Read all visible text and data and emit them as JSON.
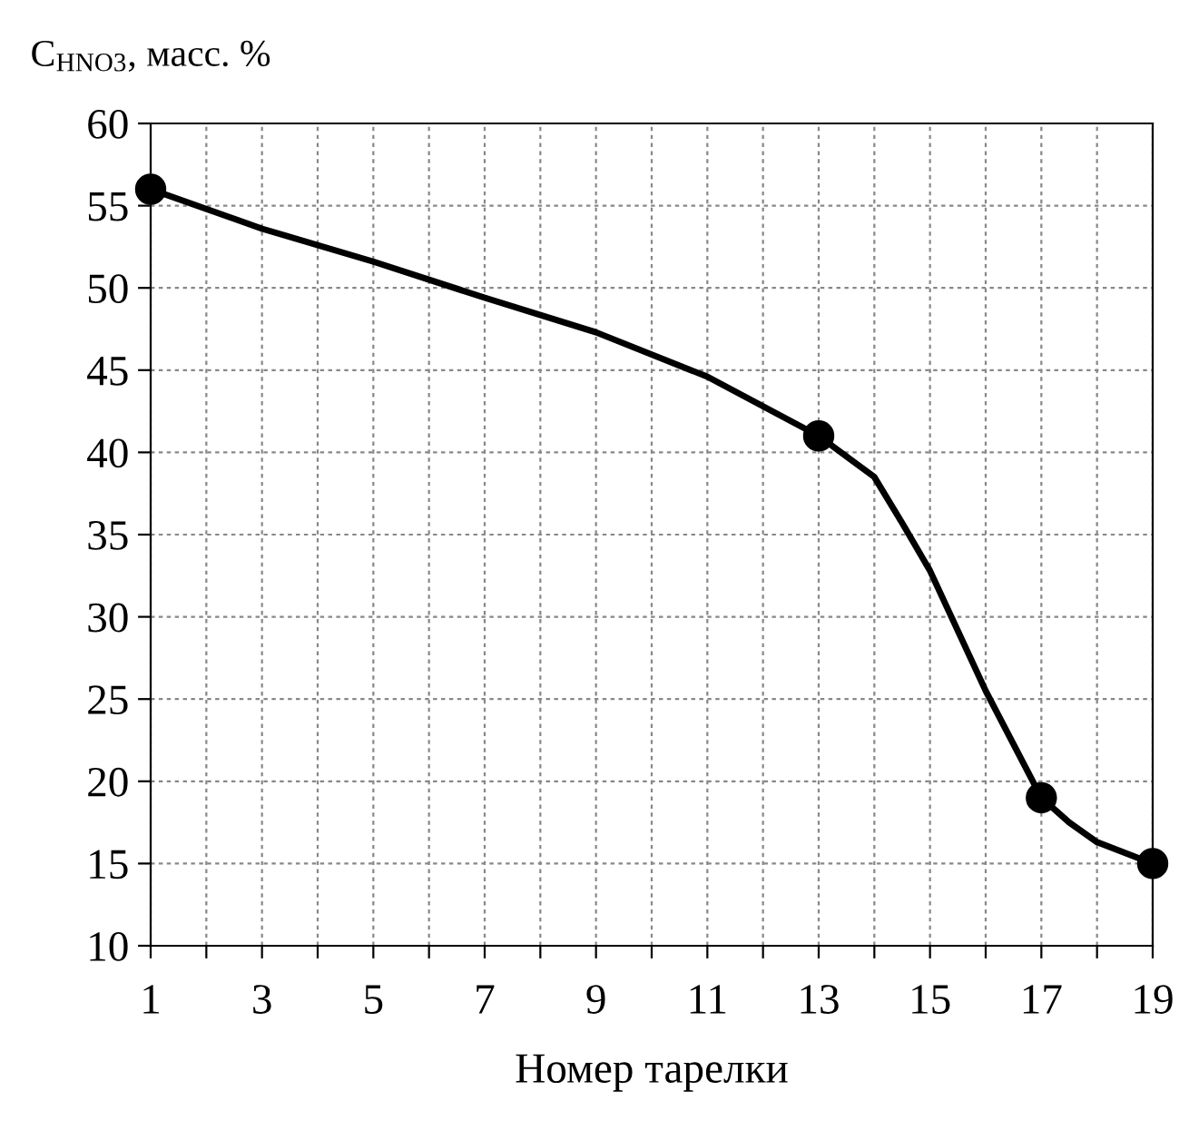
{
  "chart_data": {
    "type": "line",
    "xlabel": "Номер тарелки",
    "ylabel": "C$_{HNO3}$, масс. %",
    "xlim": [
      1,
      19
    ],
    "ylim": [
      10,
      60
    ],
    "xticks": [
      1,
      {
        "value": 2,
        "label": null
      },
      3,
      {
        "value": 4,
        "label": null
      },
      5,
      {
        "value": 6,
        "label": null
      },
      7,
      {
        "value": 8,
        "label": null
      },
      9,
      {
        "value": 10,
        "label": null
      },
      11,
      {
        "value": 12,
        "label": null
      },
      13,
      {
        "value": 14,
        "label": null
      },
      15,
      {
        "value": 16,
        "label": null
      },
      17,
      {
        "value": 18,
        "label": null
      },
      19
    ],
    "yticks": [
      10,
      15,
      20,
      25,
      30,
      35,
      40,
      45,
      50,
      55,
      60
    ],
    "grid": true,
    "legend": false,
    "series": [
      {
        "color": "#000000",
        "marker": "none",
        "x": [
          1,
          3,
          5,
          7,
          9,
          11,
          13,
          14,
          14.5,
          15,
          16,
          17,
          17.5,
          18,
          19
        ],
        "values": [
          56,
          53.6,
          51.6,
          49.4,
          47.3,
          44.6,
          41,
          38.5,
          35.7,
          32.8,
          25.5,
          19,
          17.5,
          16.3,
          15
        ]
      },
      {
        "type": "scatter",
        "color": "#000000",
        "marker": "circle",
        "x": [
          1,
          13,
          17,
          19
        ],
        "values": [
          56,
          41,
          19,
          15
        ]
      }
    ]
  }
}
